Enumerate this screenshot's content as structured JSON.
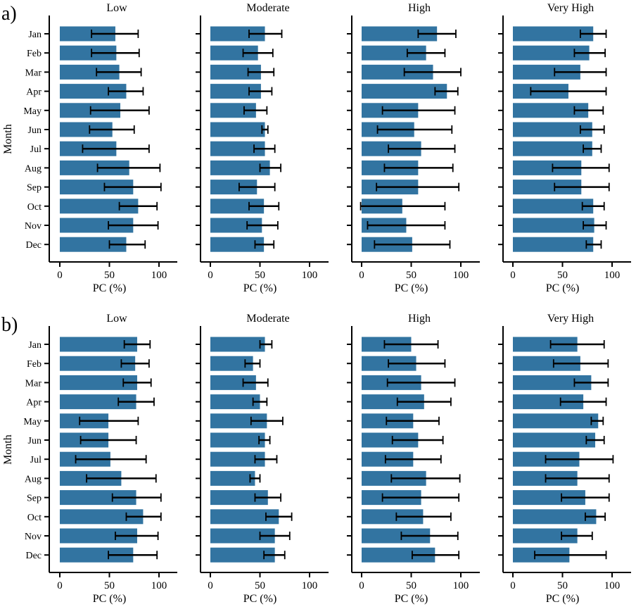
{
  "chart_data": [
    {
      "panel_label": "a)",
      "type": "bar",
      "orientation": "horizontal",
      "ylabel": "Month",
      "categories": [
        "Jan",
        "Feb",
        "Mar",
        "Apr",
        "May",
        "Jun",
        "Jul",
        "Aug",
        "Sep",
        "Oct",
        "Nov",
        "Dec"
      ],
      "xticks": [
        "0",
        "50",
        "100"
      ],
      "xlim": [
        -10,
        118
      ],
      "bar_color": "#3274a1",
      "subplots": [
        {
          "title": "Low",
          "xlabel": "PC (%)",
          "values": [
            56,
            57,
            60,
            67,
            61,
            53,
            57,
            70,
            74,
            79,
            74,
            67
          ],
          "err_low": [
            32,
            32,
            37,
            49,
            31,
            30,
            23,
            38,
            45,
            60,
            49,
            50
          ],
          "err_high": [
            79,
            80,
            82,
            84,
            90,
            75,
            90,
            101,
            102,
            98,
            99,
            86
          ]
        },
        {
          "title": "Moderate",
          "xlabel": "PC (%)",
          "values": [
            55,
            48,
            51,
            51,
            46,
            55,
            55,
            60,
            47,
            54,
            52,
            54
          ],
          "err_low": [
            39,
            33,
            38,
            39,
            34,
            52,
            44,
            50,
            29,
            39,
            37,
            45
          ],
          "err_high": [
            72,
            63,
            64,
            62,
            57,
            58,
            65,
            71,
            65,
            69,
            68,
            64
          ]
        },
        {
          "title": "High",
          "xlabel": "PC (%)",
          "values": [
            76,
            65,
            72,
            86,
            57,
            53,
            60,
            57,
            57,
            41,
            45,
            51
          ],
          "err_low": [
            57,
            46,
            43,
            74,
            21,
            16,
            27,
            23,
            15,
            -1,
            6,
            13
          ],
          "err_high": [
            95,
            84,
            100,
            97,
            94,
            91,
            94,
            92,
            98,
            84,
            84,
            89
          ]
        },
        {
          "title": "Very High",
          "xlabel": "PC (%)",
          "values": [
            81,
            77,
            68,
            56,
            76,
            80,
            80,
            69,
            69,
            81,
            82,
            81
          ],
          "err_low": [
            68,
            62,
            42,
            18,
            62,
            68,
            71,
            40,
            42,
            70,
            71,
            74
          ],
          "err_high": [
            94,
            93,
            94,
            94,
            91,
            92,
            89,
            97,
            97,
            92,
            94,
            89
          ]
        }
      ]
    },
    {
      "panel_label": "b)",
      "type": "bar",
      "orientation": "horizontal",
      "ylabel": "Month",
      "categories": [
        "Jan",
        "Feb",
        "Mar",
        "Apr",
        "May",
        "Jun",
        "Jul",
        "Aug",
        "Sep",
        "Oct",
        "Nov",
        "Dec"
      ],
      "xticks": [
        "0",
        "50",
        "100"
      ],
      "xlim": [
        -10,
        118
      ],
      "bar_color": "#3274a1",
      "subplots": [
        {
          "title": "Low",
          "xlabel": "PC (%)",
          "values": [
            78,
            76,
            78,
            77,
            49,
            49,
            51,
            62,
            77,
            84,
            78,
            74
          ],
          "err_low": [
            65,
            62,
            64,
            59,
            20,
            21,
            16,
            27,
            53,
            67,
            56,
            49
          ],
          "err_high": [
            91,
            90,
            92,
            95,
            79,
            77,
            87,
            97,
            102,
            102,
            99,
            98
          ]
        },
        {
          "title": "Moderate",
          "xlabel": "PC (%)",
          "values": [
            55,
            43,
            46,
            50,
            57,
            55,
            55,
            45,
            58,
            69,
            65,
            65
          ],
          "err_low": [
            50,
            35,
            33,
            43,
            41,
            49,
            45,
            40,
            45,
            56,
            50,
            54
          ],
          "err_high": [
            62,
            50,
            58,
            57,
            73,
            60,
            67,
            50,
            71,
            82,
            80,
            75
          ]
        },
        {
          "title": "High",
          "xlabel": "PC (%)",
          "values": [
            50,
            55,
            60,
            63,
            52,
            57,
            52,
            65,
            60,
            62,
            69,
            74
          ],
          "err_low": [
            23,
            27,
            26,
            36,
            25,
            31,
            24,
            30,
            21,
            35,
            40,
            51
          ],
          "err_high": [
            77,
            84,
            94,
            90,
            78,
            82,
            80,
            99,
            98,
            90,
            97,
            98
          ]
        },
        {
          "title": "Very High",
          "xlabel": "PC (%)",
          "values": [
            65,
            68,
            79,
            71,
            86,
            83,
            67,
            65,
            73,
            84,
            65,
            57
          ],
          "err_low": [
            38,
            41,
            62,
            48,
            79,
            74,
            33,
            33,
            49,
            73,
            49,
            22
          ],
          "err_high": [
            92,
            96,
            96,
            94,
            91,
            92,
            101,
            97,
            97,
            93,
            80,
            94
          ]
        }
      ]
    }
  ]
}
